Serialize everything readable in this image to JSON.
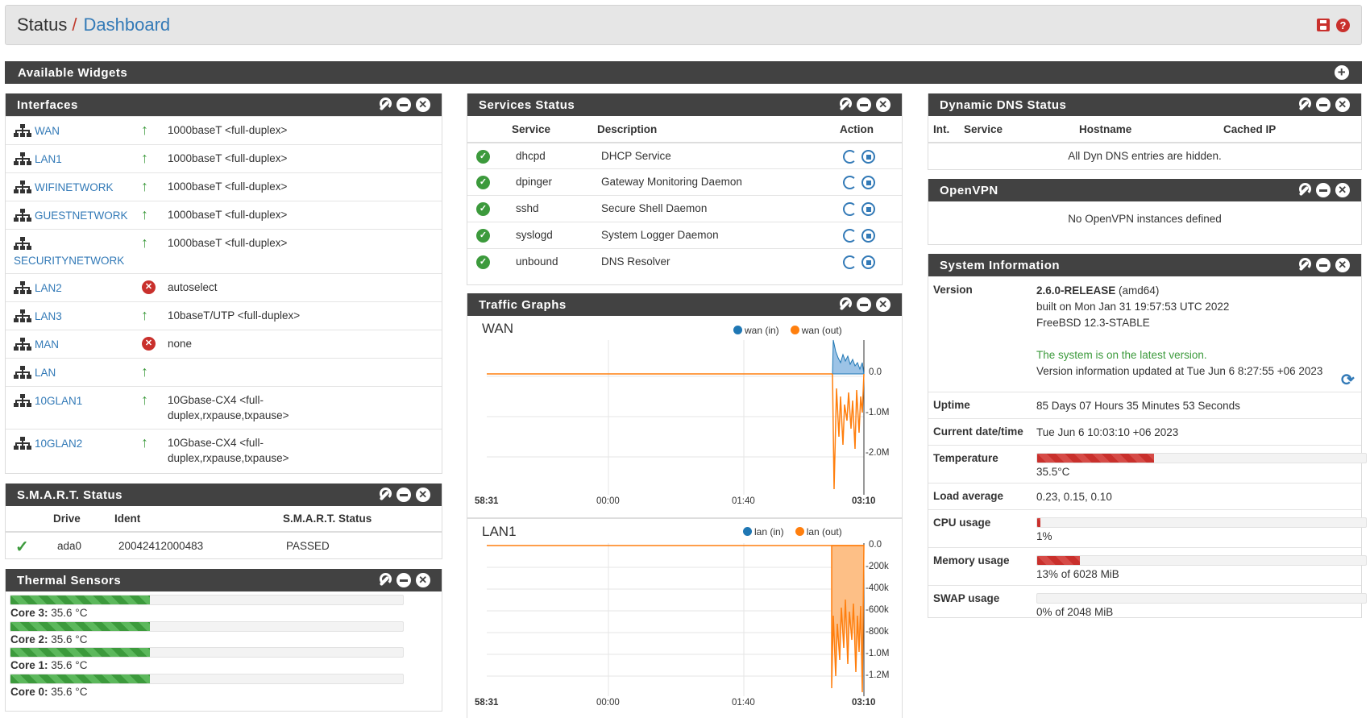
{
  "breadcrumb": {
    "parent": "Status",
    "separator": "/",
    "current": "Dashboard"
  },
  "available_widgets": {
    "title": "Available Widgets"
  },
  "interfaces": {
    "title": "Interfaces",
    "rows": [
      {
        "name": "WAN",
        "status": "up",
        "desc": "1000baseT <full-duplex>"
      },
      {
        "name": "LAN1",
        "status": "up",
        "desc": "1000baseT <full-duplex>"
      },
      {
        "name": "WIFINETWORK",
        "status": "up",
        "desc": "1000baseT <full-duplex>"
      },
      {
        "name": "GUESTNETWORK",
        "status": "up",
        "desc": "1000baseT <full-duplex>"
      },
      {
        "name": "SECURITYNETWORK",
        "status": "up",
        "desc": "1000baseT <full-duplex>"
      },
      {
        "name": "LAN2",
        "status": "down",
        "desc": "autoselect"
      },
      {
        "name": "LAN3",
        "status": "up",
        "desc": "10baseT/UTP <full-duplex>"
      },
      {
        "name": "MAN",
        "status": "down",
        "desc": "none"
      },
      {
        "name": "LAN",
        "status": "up",
        "desc": ""
      },
      {
        "name": "10GLAN1",
        "status": "up",
        "desc_l1": "10Gbase-CX4 <full-",
        "desc_l2": "duplex,rxpause,txpause>"
      },
      {
        "name": "10GLAN2",
        "status": "up",
        "desc_l1": "10Gbase-CX4 <full-",
        "desc_l2": "duplex,rxpause,txpause>"
      }
    ]
  },
  "smart": {
    "title": "S.M.A.R.T. Status",
    "headers": {
      "drive": "Drive",
      "ident": "Ident",
      "status": "S.M.A.R.T. Status"
    },
    "rows": [
      {
        "drive": "ada0",
        "ident": "20042412000483",
        "status": "PASSED"
      }
    ]
  },
  "thermal": {
    "title": "Thermal Sensors",
    "sensors": [
      {
        "label": "Core 3:",
        "value": "35.6 °C",
        "fraction": 0.356
      },
      {
        "label": "Core 2:",
        "value": "35.6 °C",
        "fraction": 0.356
      },
      {
        "label": "Core 1:",
        "value": "35.6 °C",
        "fraction": 0.356
      },
      {
        "label": "Core 0:",
        "value": "35.6 °C",
        "fraction": 0.356
      }
    ]
  },
  "services": {
    "title": "Services Status",
    "headers": {
      "service": "Service",
      "description": "Description",
      "action": "Action"
    },
    "rows": [
      {
        "service": "dhcpd",
        "description": "DHCP Service"
      },
      {
        "service": "dpinger",
        "description": "Gateway Monitoring Daemon"
      },
      {
        "service": "sshd",
        "description": "Secure Shell Daemon"
      },
      {
        "service": "syslogd",
        "description": "System Logger Daemon"
      },
      {
        "service": "unbound",
        "description": "DNS Resolver"
      }
    ]
  },
  "traffic": {
    "title": "Traffic Graphs",
    "wan": {
      "label": "WAN",
      "legend_in": "wan (in)",
      "legend_out": "wan (out)",
      "y_ticks": [
        "0.0",
        "-1.0M",
        "-2.0M"
      ],
      "x_ticks": [
        "58:31",
        "00:00",
        "01:40",
        "03:10"
      ]
    },
    "lan": {
      "label": "LAN1",
      "legend_in": "lan (in)",
      "legend_out": "lan (out)",
      "y_ticks": [
        "0.0",
        "-200k",
        "-400k",
        "-600k",
        "-800k",
        "-1.0M",
        "-1.2M"
      ],
      "x_ticks": [
        "58:31",
        "00:00",
        "01:40",
        "03:10"
      ]
    },
    "colors": {
      "in": "#1f77b4",
      "out": "#ff7f0e"
    }
  },
  "ddns": {
    "title": "Dynamic DNS Status",
    "headers": {
      "int": "Int.",
      "service": "Service",
      "hostname": "Hostname",
      "cached_ip": "Cached IP"
    },
    "message": "All Dyn DNS entries are hidden."
  },
  "openvpn": {
    "title": "OpenVPN",
    "message": "No OpenVPN instances defined"
  },
  "sysinfo": {
    "title": "System Information",
    "version_key": "Version",
    "version_release": "2.6.0-RELEASE",
    "version_arch": " (amd64)",
    "version_built": "built on Mon Jan 31 19:57:53 UTC 2022",
    "version_os": "FreeBSD 12.3-STABLE",
    "version_latest": "The system is on the latest version.",
    "version_updated": "Version information updated at Tue Jun 6 8:27:55 +06 2023",
    "uptime_key": "Uptime",
    "uptime_val": "85 Days 07 Hours 35 Minutes 53 Seconds",
    "datetime_key": "Current date/time",
    "datetime_val": "Tue Jun 6 10:03:10 +06 2023",
    "temp_key": "Temperature",
    "temp_val": "35.5°C",
    "temp_fraction": 0.355,
    "load_key": "Load average",
    "load_val": "0.23, 0.15, 0.10",
    "cpu_key": "CPU usage",
    "cpu_val": "1%",
    "cpu_fraction": 0.01,
    "mem_key": "Memory usage",
    "mem_val": "13% of 6028 MiB",
    "mem_fraction": 0.13,
    "swap_key": "SWAP usage",
    "swap_val": "0% of 2048 MiB",
    "swap_fraction": 0.0
  }
}
